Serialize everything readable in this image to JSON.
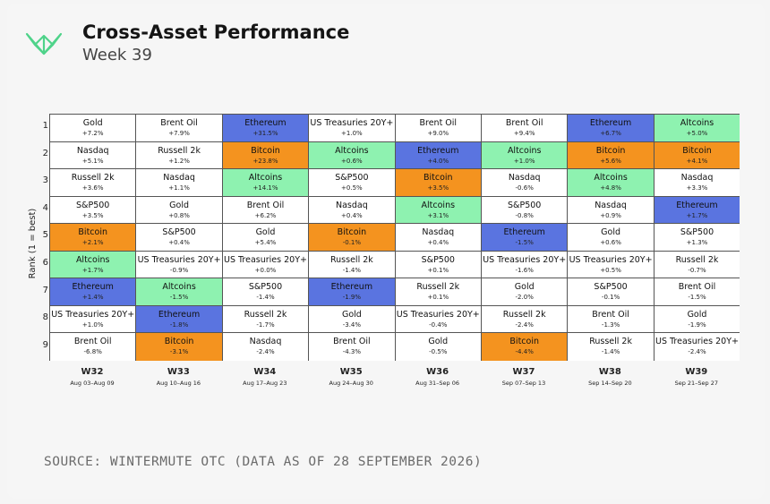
{
  "header": {
    "title": "Cross-Asset Performance",
    "subtitle": "Week 39"
  },
  "colors": {
    "Bitcoin": "#f4931f",
    "Ethereum": "#5a74e0",
    "Altcoins": "#8ef2b0",
    "default": "#ffffff"
  },
  "source": "SOURCE: WINTERMUTE OTC (DATA AS OF 28 SEPTEMBER 2026)",
  "chart_data": {
    "type": "table",
    "ylabel": "Rank (1 = best)",
    "ranks": [
      "1",
      "2",
      "3",
      "4",
      "5",
      "6",
      "7",
      "8",
      "9"
    ],
    "columns": [
      {
        "week": "W32",
        "dates": "Aug 03–Aug 09",
        "rows": [
          {
            "asset": "Gold",
            "change": "+7.2%"
          },
          {
            "asset": "Nasdaq",
            "change": "+5.1%"
          },
          {
            "asset": "Russell 2k",
            "change": "+3.6%"
          },
          {
            "asset": "S&P500",
            "change": "+3.5%"
          },
          {
            "asset": "Bitcoin",
            "change": "+2.1%"
          },
          {
            "asset": "Altcoins",
            "change": "+1.7%"
          },
          {
            "asset": "Ethereum",
            "change": "+1.4%"
          },
          {
            "asset": "US Treasuries 20Y+",
            "change": "+1.0%"
          },
          {
            "asset": "Brent Oil",
            "change": "-6.8%"
          }
        ]
      },
      {
        "week": "W33",
        "dates": "Aug 10–Aug 16",
        "rows": [
          {
            "asset": "Brent Oil",
            "change": "+7.9%"
          },
          {
            "asset": "Russell 2k",
            "change": "+1.2%"
          },
          {
            "asset": "Nasdaq",
            "change": "+1.1%"
          },
          {
            "asset": "Gold",
            "change": "+0.8%"
          },
          {
            "asset": "S&P500",
            "change": "+0.4%"
          },
          {
            "asset": "US Treasuries 20Y+",
            "change": "-0.9%"
          },
          {
            "asset": "Altcoins",
            "change": "-1.5%"
          },
          {
            "asset": "Ethereum",
            "change": "-1.8%"
          },
          {
            "asset": "Bitcoin",
            "change": "-3.1%"
          }
        ]
      },
      {
        "week": "W34",
        "dates": "Aug 17–Aug 23",
        "rows": [
          {
            "asset": "Ethereum",
            "change": "+31.5%"
          },
          {
            "asset": "Bitcoin",
            "change": "+23.8%"
          },
          {
            "asset": "Altcoins",
            "change": "+14.1%"
          },
          {
            "asset": "Brent Oil",
            "change": "+6.2%"
          },
          {
            "asset": "Gold",
            "change": "+5.4%"
          },
          {
            "asset": "US Treasuries 20Y+",
            "change": "+0.0%"
          },
          {
            "asset": "S&P500",
            "change": "-1.4%"
          },
          {
            "asset": "Russell 2k",
            "change": "-1.7%"
          },
          {
            "asset": "Nasdaq",
            "change": "-2.4%"
          }
        ]
      },
      {
        "week": "W35",
        "dates": "Aug 24–Aug 30",
        "rows": [
          {
            "asset": "US Treasuries 20Y+",
            "change": "+1.0%"
          },
          {
            "asset": "Altcoins",
            "change": "+0.6%"
          },
          {
            "asset": "S&P500",
            "change": "+0.5%"
          },
          {
            "asset": "Nasdaq",
            "change": "+0.4%"
          },
          {
            "asset": "Bitcoin",
            "change": "-0.1%"
          },
          {
            "asset": "Russell 2k",
            "change": "-1.4%"
          },
          {
            "asset": "Ethereum",
            "change": "-1.9%"
          },
          {
            "asset": "Gold",
            "change": "-3.4%"
          },
          {
            "asset": "Brent Oil",
            "change": "-4.3%"
          }
        ]
      },
      {
        "week": "W36",
        "dates": "Aug 31–Sep 06",
        "rows": [
          {
            "asset": "Brent Oil",
            "change": "+9.0%"
          },
          {
            "asset": "Ethereum",
            "change": "+4.0%"
          },
          {
            "asset": "Bitcoin",
            "change": "+3.5%"
          },
          {
            "asset": "Altcoins",
            "change": "+3.1%"
          },
          {
            "asset": "Nasdaq",
            "change": "+0.4%"
          },
          {
            "asset": "S&P500",
            "change": "+0.1%"
          },
          {
            "asset": "Russell 2k",
            "change": "+0.1%"
          },
          {
            "asset": "US Treasuries 20Y+",
            "change": "-0.4%"
          },
          {
            "asset": "Gold",
            "change": "-0.5%"
          }
        ]
      },
      {
        "week": "W37",
        "dates": "Sep 07–Sep 13",
        "rows": [
          {
            "asset": "Brent Oil",
            "change": "+9.4%"
          },
          {
            "asset": "Altcoins",
            "change": "+1.0%"
          },
          {
            "asset": "Nasdaq",
            "change": "-0.6%"
          },
          {
            "asset": "S&P500",
            "change": "-0.8%"
          },
          {
            "asset": "Ethereum",
            "change": "-1.5%"
          },
          {
            "asset": "US Treasuries 20Y+",
            "change": "-1.6%"
          },
          {
            "asset": "Gold",
            "change": "-2.0%"
          },
          {
            "asset": "Russell 2k",
            "change": "-2.4%"
          },
          {
            "asset": "Bitcoin",
            "change": "-4.4%"
          }
        ]
      },
      {
        "week": "W38",
        "dates": "Sep 14–Sep 20",
        "rows": [
          {
            "asset": "Ethereum",
            "change": "+6.7%"
          },
          {
            "asset": "Bitcoin",
            "change": "+5.6%"
          },
          {
            "asset": "Altcoins",
            "change": "+4.8%"
          },
          {
            "asset": "Nasdaq",
            "change": "+0.9%"
          },
          {
            "asset": "Gold",
            "change": "+0.6%"
          },
          {
            "asset": "US Treasuries 20Y+",
            "change": "+0.5%"
          },
          {
            "asset": "S&P500",
            "change": "-0.1%"
          },
          {
            "asset": "Brent Oil",
            "change": "-1.3%"
          },
          {
            "asset": "Russell 2k",
            "change": "-1.4%"
          }
        ]
      },
      {
        "week": "W39",
        "dates": "Sep 21–Sep 27",
        "rows": [
          {
            "asset": "Altcoins",
            "change": "+5.0%"
          },
          {
            "asset": "Bitcoin",
            "change": "+4.1%"
          },
          {
            "asset": "Nasdaq",
            "change": "+3.3%"
          },
          {
            "asset": "Ethereum",
            "change": "+1.7%"
          },
          {
            "asset": "S&P500",
            "change": "+1.3%"
          },
          {
            "asset": "Russell 2k",
            "change": "-0.7%"
          },
          {
            "asset": "Brent Oil",
            "change": "-1.5%"
          },
          {
            "asset": "Gold",
            "change": "-1.9%"
          },
          {
            "asset": "US Treasuries 20Y+",
            "change": "-2.4%"
          }
        ]
      }
    ]
  }
}
